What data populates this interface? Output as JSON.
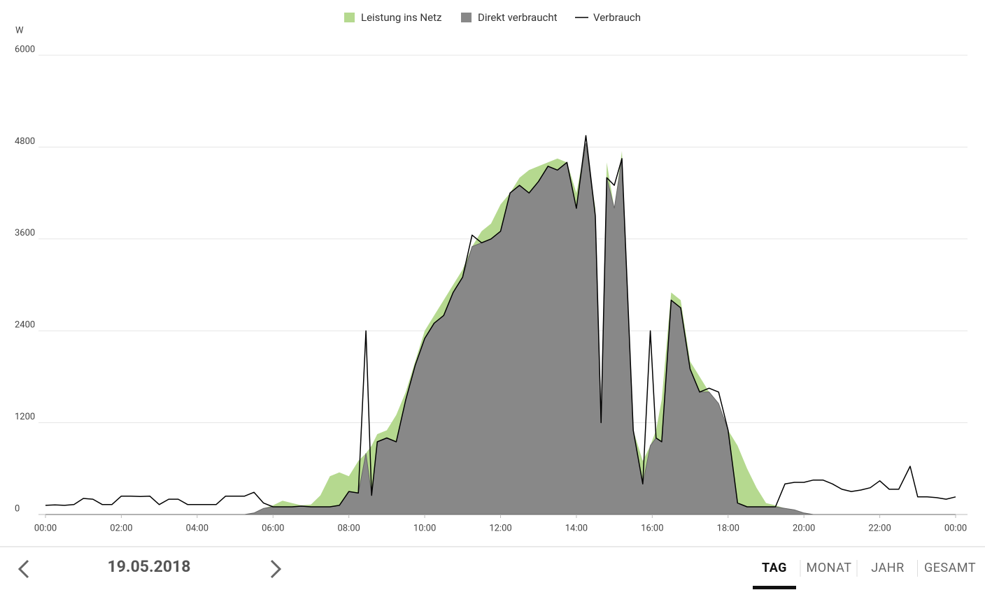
{
  "chart_data": {
    "type": "stacked_area_line",
    "y_label": "W",
    "x": [
      0,
      0.25,
      0.5,
      0.75,
      1,
      1.25,
      1.5,
      1.75,
      2,
      2.25,
      2.5,
      2.75,
      3,
      3.25,
      3.5,
      3.75,
      4,
      4.25,
      4.5,
      4.75,
      5,
      5.25,
      5.5,
      5.75,
      6,
      6.25,
      6.5,
      6.75,
      7,
      7.25,
      7.5,
      7.75,
      8,
      8.25,
      8.45,
      8.6,
      8.75,
      9,
      9.25,
      9.5,
      9.75,
      10,
      10.25,
      10.5,
      10.75,
      11,
      11.25,
      11.5,
      11.75,
      12,
      12.25,
      12.5,
      12.75,
      13,
      13.25,
      13.5,
      13.75,
      14,
      14.25,
      14.5,
      14.65,
      14.8,
      15,
      15.2,
      15.5,
      15.75,
      15.95,
      16.1,
      16.25,
      16.5,
      16.75,
      17,
      17.25,
      17.5,
      17.75,
      18,
      18.25,
      18.5,
      18.75,
      19,
      19.25,
      19.5,
      19.75,
      20,
      20.25,
      20.5,
      20.75,
      21,
      21.25,
      21.5,
      21.75,
      22,
      22.25,
      22.5,
      22.8,
      23,
      23.25,
      23.5,
      23.75,
      24
    ],
    "series": [
      {
        "name": "Direkt verbraucht",
        "color": "#888888",
        "stack": true,
        "values": [
          0,
          0,
          0,
          0,
          0,
          0,
          0,
          0,
          0,
          0,
          0,
          0,
          0,
          0,
          0,
          0,
          0,
          0,
          0,
          0,
          0,
          0,
          20,
          80,
          100,
          100,
          100,
          110,
          100,
          100,
          100,
          120,
          300,
          280,
          800,
          250,
          950,
          1000,
          950,
          1500,
          1950,
          2300,
          2500,
          2600,
          2900,
          3100,
          3500,
          3550,
          3600,
          3700,
          4200,
          4300,
          4200,
          4350,
          4550,
          4500,
          4600,
          4000,
          4850,
          3900,
          1200,
          4400,
          4000,
          4650,
          1100,
          400,
          900,
          1000,
          950,
          2800,
          2700,
          1900,
          1600,
          1600,
          1450,
          1100,
          150,
          100,
          100,
          100,
          100,
          80,
          60,
          20,
          0,
          0,
          0,
          0,
          0,
          0,
          0,
          0,
          0,
          0,
          0,
          0,
          0,
          0,
          0,
          0
        ]
      },
      {
        "name": "Leistung ins Netz",
        "color": "#b5d98f",
        "stack": true,
        "values": [
          0,
          0,
          0,
          0,
          0,
          0,
          0,
          0,
          0,
          0,
          0,
          0,
          0,
          0,
          0,
          0,
          0,
          0,
          0,
          0,
          0,
          0,
          0,
          0,
          20,
          80,
          50,
          10,
          30,
          150,
          400,
          430,
          200,
          420,
          0,
          650,
          100,
          100,
          350,
          100,
          50,
          100,
          100,
          200,
          100,
          100,
          0,
          150,
          200,
          350,
          0,
          100,
          300,
          200,
          50,
          150,
          0,
          200,
          0,
          100,
          0,
          200,
          0,
          100,
          0,
          300,
          0,
          100,
          550,
          100,
          100,
          100,
          200,
          0,
          0,
          0,
          750,
          500,
          250,
          50,
          20,
          0,
          0,
          0,
          0,
          0,
          0,
          0,
          0,
          0,
          0,
          0,
          0,
          0,
          0,
          0,
          0,
          0,
          0,
          0
        ]
      },
      {
        "name": "Verbrauch",
        "color": "#000000",
        "stack": false,
        "values": [
          120,
          125,
          120,
          130,
          210,
          200,
          130,
          130,
          240,
          240,
          235,
          240,
          130,
          200,
          200,
          130,
          130,
          130,
          130,
          240,
          240,
          240,
          290,
          150,
          100,
          100,
          100,
          110,
          100,
          100,
          100,
          120,
          300,
          280,
          2400,
          250,
          950,
          1000,
          950,
          1500,
          1950,
          2300,
          2500,
          2600,
          2900,
          3100,
          3650,
          3550,
          3600,
          3700,
          4200,
          4300,
          4200,
          4350,
          4550,
          4500,
          4600,
          4000,
          4950,
          3900,
          1200,
          4400,
          4300,
          4650,
          1100,
          400,
          2400,
          1000,
          950,
          2800,
          2700,
          1900,
          1600,
          1650,
          1600,
          1100,
          150,
          100,
          100,
          100,
          100,
          400,
          420,
          420,
          450,
          450,
          400,
          330,
          300,
          320,
          350,
          440,
          330,
          330,
          630,
          230,
          230,
          220,
          200,
          230
        ]
      }
    ],
    "legend_order": [
      1,
      0,
      2
    ],
    "xlim": [
      0,
      24
    ],
    "xticks": [
      {
        "value": 0,
        "label": "00:00"
      },
      {
        "value": 2,
        "label": "02:00"
      },
      {
        "value": 4,
        "label": "04:00"
      },
      {
        "value": 6,
        "label": "06:00"
      },
      {
        "value": 8,
        "label": "08:00"
      },
      {
        "value": 10,
        "label": "10:00"
      },
      {
        "value": 12,
        "label": "12:00"
      },
      {
        "value": 14,
        "label": "14:00"
      },
      {
        "value": 16,
        "label": "16:00"
      },
      {
        "value": 18,
        "label": "18:00"
      },
      {
        "value": 20,
        "label": "20:00"
      },
      {
        "value": 22,
        "label": "22:00"
      },
      {
        "value": 24,
        "label": "00:00"
      }
    ],
    "ylim": [
      0,
      6000
    ],
    "yticks": [
      0,
      1200,
      2400,
      3600,
      4800,
      6000
    ],
    "grid": true
  },
  "navigation": {
    "date": "19.05.2018",
    "tabs": [
      "TAG",
      "MONAT",
      "JAHR",
      "GESAMT"
    ],
    "active_tab": 0
  }
}
